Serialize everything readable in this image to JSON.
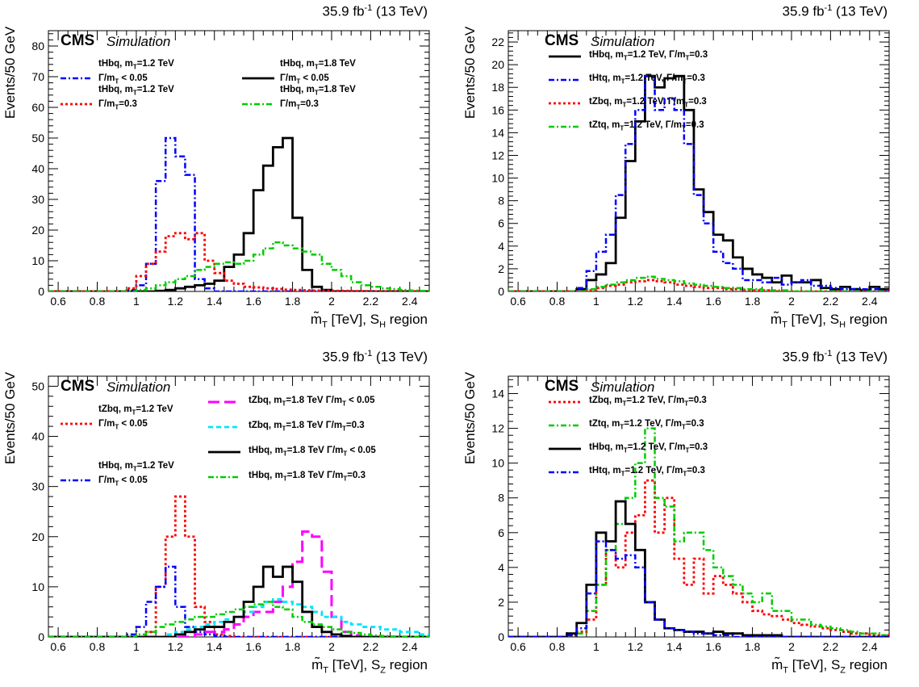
{
  "figure": {
    "lumi_prefix": "35.9 fb",
    "lumi_sup": "-1",
    "lumi_suffix": " (13 TeV)",
    "cms_label": "CMS",
    "sim_label": "Simulation",
    "ylabel": "Events/50 GeV",
    "xlabel_prefix": "m̃",
    "xlabel_T": "T",
    "xlabel_mid": " [TeV], S",
    "xlabel_region": " region"
  },
  "chart_data": [
    {
      "type": "line",
      "region_sub": "H",
      "xlim": [
        0.55,
        2.5
      ],
      "ylim": [
        0,
        85
      ],
      "yticks": [
        0,
        10,
        20,
        30,
        40,
        50,
        60,
        70,
        80
      ],
      "xticks": [
        0.6,
        0.8,
        1,
        1.2,
        1.4,
        1.6,
        1.8,
        2,
        2.2,
        2.4
      ],
      "bin_start": 0.55,
      "bin_width": 0.05,
      "legend": [
        {
          "text": "tHbq, m_T=1.2 TeV",
          "text2": "Γ/m_T < 0.05",
          "series": 0
        },
        {
          "text": "tHbq, m_T=1.8 TeV",
          "text2": "Γ/m_T < 0.05",
          "series": 1
        },
        {
          "text": "tHbq, m_T=1.2 TeV",
          "text2": "Γ/m_T=0.3",
          "series": 2
        },
        {
          "text": "tHbq, m_T=1.8 TeV",
          "text2": "Γ/m_T=0.3",
          "series": 3
        }
      ],
      "series": [
        {
          "name": "tHbq, m_T=1.2 TeV Γ/m_T < 0.05",
          "color": "#0000ff",
          "style": "dashdot",
          "width": 2.5,
          "values": [
            0,
            0,
            0,
            0,
            0,
            0,
            0,
            0,
            0.5,
            2,
            9,
            36,
            50,
            44,
            38,
            4,
            1,
            0,
            0,
            0,
            0,
            0,
            0,
            0,
            0,
            0,
            0,
            0,
            0,
            0,
            0,
            0,
            0,
            0,
            0,
            0,
            0,
            0,
            0
          ]
        },
        {
          "name": "tHbq, m_T=1.8 TeV Γ/m_T < 0.05",
          "color": "#000000",
          "style": "solid",
          "width": 2.8,
          "values": [
            0,
            0,
            0,
            0,
            0,
            0,
            0,
            0,
            0,
            0,
            0,
            0.2,
            0.5,
            1,
            1.5,
            2,
            2.5,
            3.5,
            8,
            12,
            19,
            33,
            41,
            47,
            50,
            24,
            7,
            1.5,
            0.5,
            0,
            0,
            0,
            0,
            0,
            0,
            0,
            0,
            0,
            0
          ]
        },
        {
          "name": "tHbq, m_T=1.2 TeV Γ/m_T=0.3",
          "color": "#ff0000",
          "style": "dotted",
          "width": 2.8,
          "values": [
            0,
            0,
            0,
            0,
            0,
            0,
            0,
            0,
            1,
            5,
            9,
            13,
            18,
            19,
            17,
            19,
            10,
            6,
            3.5,
            2.5,
            1.5,
            1.3,
            1,
            0.8,
            0.6,
            0.5,
            0.4,
            0.3,
            0.3,
            0.2,
            0.2,
            0.1,
            0.1,
            0,
            0,
            0,
            0,
            0,
            0
          ]
        },
        {
          "name": "tHbq, m_T=1.8 TeV Γ/m_T=0.3",
          "color": "#00cc00",
          "style": "dashdot",
          "width": 2.5,
          "values": [
            0,
            0,
            0,
            0,
            0,
            0,
            0,
            0,
            0,
            0.5,
            1,
            2,
            3,
            4,
            5,
            7,
            8,
            9,
            9.5,
            9,
            10,
            12,
            14,
            16,
            15,
            14,
            13,
            12,
            9,
            7,
            5,
            3,
            2,
            1.5,
            1,
            0.8,
            0.5,
            0.3,
            0.2
          ]
        }
      ]
    },
    {
      "type": "line",
      "region_sub": "H",
      "xlim": [
        0.55,
        2.5
      ],
      "ylim": [
        0,
        23
      ],
      "yticks": [
        0,
        2,
        4,
        6,
        8,
        10,
        12,
        14,
        16,
        18,
        20,
        22
      ],
      "xticks": [
        0.6,
        0.8,
        1,
        1.2,
        1.4,
        1.6,
        1.8,
        2,
        2.2,
        2.4
      ],
      "bin_start": 0.55,
      "bin_width": 0.05,
      "legend": [
        {
          "text": "tHbq, m_T=1.2 TeV,  Γ/m_T=0.3",
          "series": 0
        },
        {
          "text": "tHtq, m_T=1.2 TeV,  Γ/m_T=0.3",
          "series": 1
        },
        {
          "text": "tZbq, m_T=1.2 TeV,  Γ/m_T=0.3",
          "series": 2
        },
        {
          "text": "tZtq, m_T=1.2 TeV,  Γ/m_T=0.3",
          "series": 3
        }
      ],
      "series": [
        {
          "name": "tHbq, m_T=1.2 TeV, Γ/m_T=0.3",
          "color": "#000000",
          "style": "solid",
          "width": 2.8,
          "values": [
            0,
            0,
            0,
            0,
            0,
            0,
            0,
            0.2,
            1,
            1.5,
            2.5,
            6.5,
            11.5,
            15,
            19,
            18,
            18.8,
            19,
            16,
            9,
            7,
            5,
            4.5,
            3,
            2,
            1.5,
            1.2,
            0.8,
            1.4,
            0.8,
            0.8,
            1,
            0.3,
            0.2,
            0.4,
            0.2,
            0.1,
            0.4,
            0.2,
            0.2,
            0.1,
            0.1
          ]
        },
        {
          "name": "tHtq, m_T=1.2 TeV, Γ/m_T=0.3",
          "color": "#0000ff",
          "style": "dashdot",
          "width": 2.5,
          "values": [
            0,
            0,
            0,
            0,
            0,
            0,
            0,
            0.3,
            1.8,
            3.5,
            5,
            8.5,
            13,
            16,
            19,
            16,
            17,
            16,
            13,
            8.5,
            6,
            3.5,
            2.5,
            2,
            1,
            1,
            0.8,
            1.2,
            0.6,
            0.8,
            1,
            0.5,
            0.5,
            0.3,
            0.2,
            0.2,
            0.2,
            0.2,
            0.1,
            0.1
          ]
        },
        {
          "name": "tZbq, m_T=1.2 TeV, Γ/m_T=0.3",
          "color": "#ff0000",
          "style": "dotted",
          "width": 2.8,
          "values": [
            0,
            0,
            0,
            0,
            0,
            0,
            0,
            0,
            0.1,
            0.3,
            0.5,
            0.6,
            0.8,
            0.9,
            1,
            0.9,
            0.8,
            0.6,
            0.5,
            0.4,
            0.3,
            0.3,
            0.2,
            0.2,
            0.1,
            0.1,
            0.1,
            0,
            0,
            0,
            0,
            0,
            0,
            0,
            0,
            0,
            0,
            0,
            0
          ]
        },
        {
          "name": "tZtq, m_T=1.2 TeV, Γ/m_T=0.3",
          "color": "#00cc00",
          "style": "dashdot",
          "width": 2.5,
          "values": [
            0,
            0,
            0,
            0,
            0,
            0,
            0,
            0,
            0.2,
            0.4,
            0.6,
            0.8,
            1,
            1.2,
            1.3,
            1.1,
            1,
            0.9,
            0.7,
            0.6,
            0.5,
            0.4,
            0.3,
            0.3,
            0.2,
            0.2,
            0.1,
            0.1,
            0.1,
            0,
            0,
            0,
            0,
            0,
            0,
            0,
            0,
            0,
            0
          ]
        }
      ]
    },
    {
      "type": "line",
      "region_sub": "Z",
      "xlim": [
        0.55,
        2.5
      ],
      "ylim": [
        0,
        52
      ],
      "yticks": [
        0,
        10,
        20,
        30,
        40,
        50
      ],
      "xticks": [
        0.6,
        0.8,
        1,
        1.2,
        1.4,
        1.6,
        1.8,
        2,
        2.2,
        2.4
      ],
      "bin_start": 0.55,
      "bin_width": 0.05,
      "legend": [
        {
          "text": "tZbq, m_T=1.2 TeV",
          "text2": "Γ/m_T < 0.05",
          "series": 0
        },
        {
          "text": "tHbq, m_T=1.2 TeV",
          "text2": "Γ/m_T < 0.05",
          "series": 1
        },
        {
          "text": "tZbq, m_T=1.8 TeV  Γ/m_T < 0.05",
          "series": 2
        },
        {
          "text": "tZbq, m_T=1.8 TeV  Γ/m_T=0.3",
          "series": 3
        },
        {
          "text": "tHbq, m_T=1.8 TeV  Γ/m_T < 0.05",
          "series": 4
        },
        {
          "text": "tHbq, m_T=1.8 TeV  Γ/m_T=0.3",
          "series": 5
        }
      ],
      "series": [
        {
          "name": "tZbq, m_T=1.2 TeV Γ/m_T < 0.05",
          "color": "#ff0000",
          "style": "dotted",
          "width": 2.8,
          "values": [
            0,
            0,
            0,
            0,
            0,
            0,
            0,
            0,
            0,
            0,
            1,
            10,
            20,
            28,
            20,
            6,
            3,
            0.5,
            0.2,
            0,
            0,
            0,
            0,
            0,
            0,
            0,
            0,
            0,
            0,
            0,
            0,
            0,
            0,
            0,
            0,
            0,
            0,
            0,
            0
          ]
        },
        {
          "name": "tHbq, m_T=1.2 TeV Γ/m_T < 0.05",
          "color": "#0000ff",
          "style": "dashdot",
          "width": 2.5,
          "values": [
            0,
            0,
            0,
            0,
            0,
            0,
            0,
            0,
            0.5,
            2,
            7,
            10,
            14,
            6,
            2,
            1,
            0.5,
            0.2,
            0,
            0,
            0,
            0,
            0,
            0,
            0,
            0,
            0,
            0,
            0,
            0,
            0,
            0,
            0,
            0,
            0,
            0,
            0,
            0,
            0
          ]
        },
        {
          "name": "tZbq, m_T=1.8 TeV Γ/m_T < 0.05",
          "color": "#ff00ff",
          "style": "longdash",
          "width": 3,
          "values": [
            0,
            0,
            0,
            0,
            0,
            0,
            0,
            0,
            0,
            0,
            0,
            0,
            0,
            0,
            0,
            0.5,
            1,
            1,
            1.5,
            2.5,
            4,
            5,
            5,
            7,
            10,
            15,
            21,
            20,
            13,
            4,
            1,
            0.3,
            0,
            0,
            0,
            0,
            0,
            0,
            0
          ]
        },
        {
          "name": "tZbq, m_T=1.8 TeV Γ/m_T=0.3",
          "color": "#00e5ff",
          "style": "dashed",
          "width": 2.8,
          "values": [
            0,
            0,
            0,
            0,
            0,
            0,
            0,
            0,
            0,
            0,
            0,
            0,
            0.5,
            1,
            1.5,
            2,
            2.5,
            3,
            3.5,
            4,
            5,
            6,
            7,
            7.5,
            7,
            6.5,
            6,
            5,
            4,
            4,
            3,
            2.5,
            2,
            2,
            1.5,
            1.5,
            1,
            1,
            0.5
          ]
        },
        {
          "name": "tHbq, m_T=1.8 TeV Γ/m_T < 0.05",
          "color": "#000000",
          "style": "solid",
          "width": 2.8,
          "values": [
            0,
            0,
            0,
            0,
            0,
            0,
            0,
            0,
            0,
            0,
            0,
            0,
            0,
            0.5,
            1,
            1.5,
            2,
            2,
            3,
            4,
            7,
            10,
            14,
            12,
            14,
            11,
            5,
            2,
            1,
            0.5,
            0.2,
            0,
            0,
            0,
            0,
            0,
            0,
            0,
            0
          ]
        },
        {
          "name": "tHbq, m_T=1.8 TeV Γ/m_T=0.3",
          "color": "#00cc00",
          "style": "dashdot",
          "width": 2.5,
          "values": [
            0,
            0,
            0,
            0,
            0,
            0,
            0,
            0,
            0,
            0.5,
            1,
            2,
            2.5,
            3,
            3.5,
            4,
            4,
            4.5,
            5,
            5.5,
            6,
            6.5,
            7,
            6,
            5.5,
            4,
            3,
            2.5,
            2,
            1.5,
            1,
            0.8,
            0.5,
            0.3,
            0.2,
            0.1,
            0,
            0,
            0
          ]
        }
      ]
    },
    {
      "type": "line",
      "region_sub": "Z",
      "xlim": [
        0.55,
        2.5
      ],
      "ylim": [
        0,
        15
      ],
      "yticks": [
        0,
        2,
        4,
        6,
        8,
        10,
        12,
        14
      ],
      "xticks": [
        0.6,
        0.8,
        1,
        1.2,
        1.4,
        1.6,
        1.8,
        2,
        2.2,
        2.4
      ],
      "bin_start": 0.55,
      "bin_width": 0.05,
      "legend": [
        {
          "text": "tZbq, m_T=1.2 TeV,  Γ/m_T=0.3",
          "series": 0
        },
        {
          "text": "tZtq, m_T=1.2 TeV,  Γ/m_T=0.3",
          "series": 1
        },
        {
          "text": "tHbq, m_T=1.2 TeV,  Γ/m_T=0.3",
          "series": 2
        },
        {
          "text": "tHtq, m_T=1.2 TeV,  Γ/m_T=0.3",
          "series": 3
        }
      ],
      "series": [
        {
          "name": "tZbq, m_T=1.2 TeV, Γ/m_T=0.3",
          "color": "#ff0000",
          "style": "dotted",
          "width": 2.8,
          "values": [
            0,
            0,
            0,
            0,
            0,
            0,
            0.1,
            0.3,
            1,
            3,
            5,
            4,
            6,
            7,
            9,
            6,
            8,
            4.5,
            3,
            4.5,
            2.5,
            3.5,
            3,
            2.5,
            2,
            1.5,
            1.3,
            1.2,
            1,
            0.8,
            0.7,
            0.6,
            0.5,
            0.4,
            0.3,
            0.2,
            0.2,
            0.1,
            0.1
          ]
        },
        {
          "name": "tZtq, m_T=1.2 TeV, Γ/m_T=0.3",
          "color": "#00cc00",
          "style": "dashdot",
          "width": 2.5,
          "values": [
            0,
            0,
            0,
            0,
            0,
            0,
            0.1,
            0.2,
            1.5,
            3,
            5,
            6.5,
            8,
            10,
            12,
            8,
            7.5,
            5.5,
            6,
            6,
            5,
            4,
            3.5,
            3,
            2.5,
            2,
            2.5,
            1.5,
            1.5,
            1,
            1,
            0.7,
            0.6,
            0.5,
            0.4,
            0.3,
            0.2,
            0.2,
            0.1
          ]
        },
        {
          "name": "tHbq, m_T=1.2 TeV, Γ/m_T=0.3",
          "color": "#000000",
          "style": "solid",
          "width": 2.8,
          "values": [
            0,
            0,
            0,
            0,
            0,
            0,
            0.2,
            0.8,
            3,
            6,
            5.5,
            7.8,
            6.5,
            5,
            2,
            1,
            0.5,
            0.4,
            0.3,
            0.3,
            0.2,
            0.3,
            0.2,
            0.2,
            0.1,
            0.1,
            0.1,
            0.1,
            0,
            0,
            0,
            0,
            0,
            0,
            0,
            0,
            0,
            0,
            0
          ]
        },
        {
          "name": "tHtq, m_T=1.2 TeV, Γ/m_T=0.3",
          "color": "#0000ff",
          "style": "dashdot",
          "width": 2.5,
          "values": [
            0,
            0,
            0,
            0,
            0,
            0,
            0.1,
            0.5,
            2.5,
            5.5,
            5,
            4.5,
            4.7,
            4,
            2,
            1,
            0.5,
            0.4,
            0.3,
            0.2,
            0.2,
            0.1,
            0.1,
            0,
            0,
            0,
            0,
            0,
            0,
            0,
            0,
            0,
            0,
            0,
            0,
            0,
            0,
            0,
            0
          ]
        }
      ]
    }
  ]
}
